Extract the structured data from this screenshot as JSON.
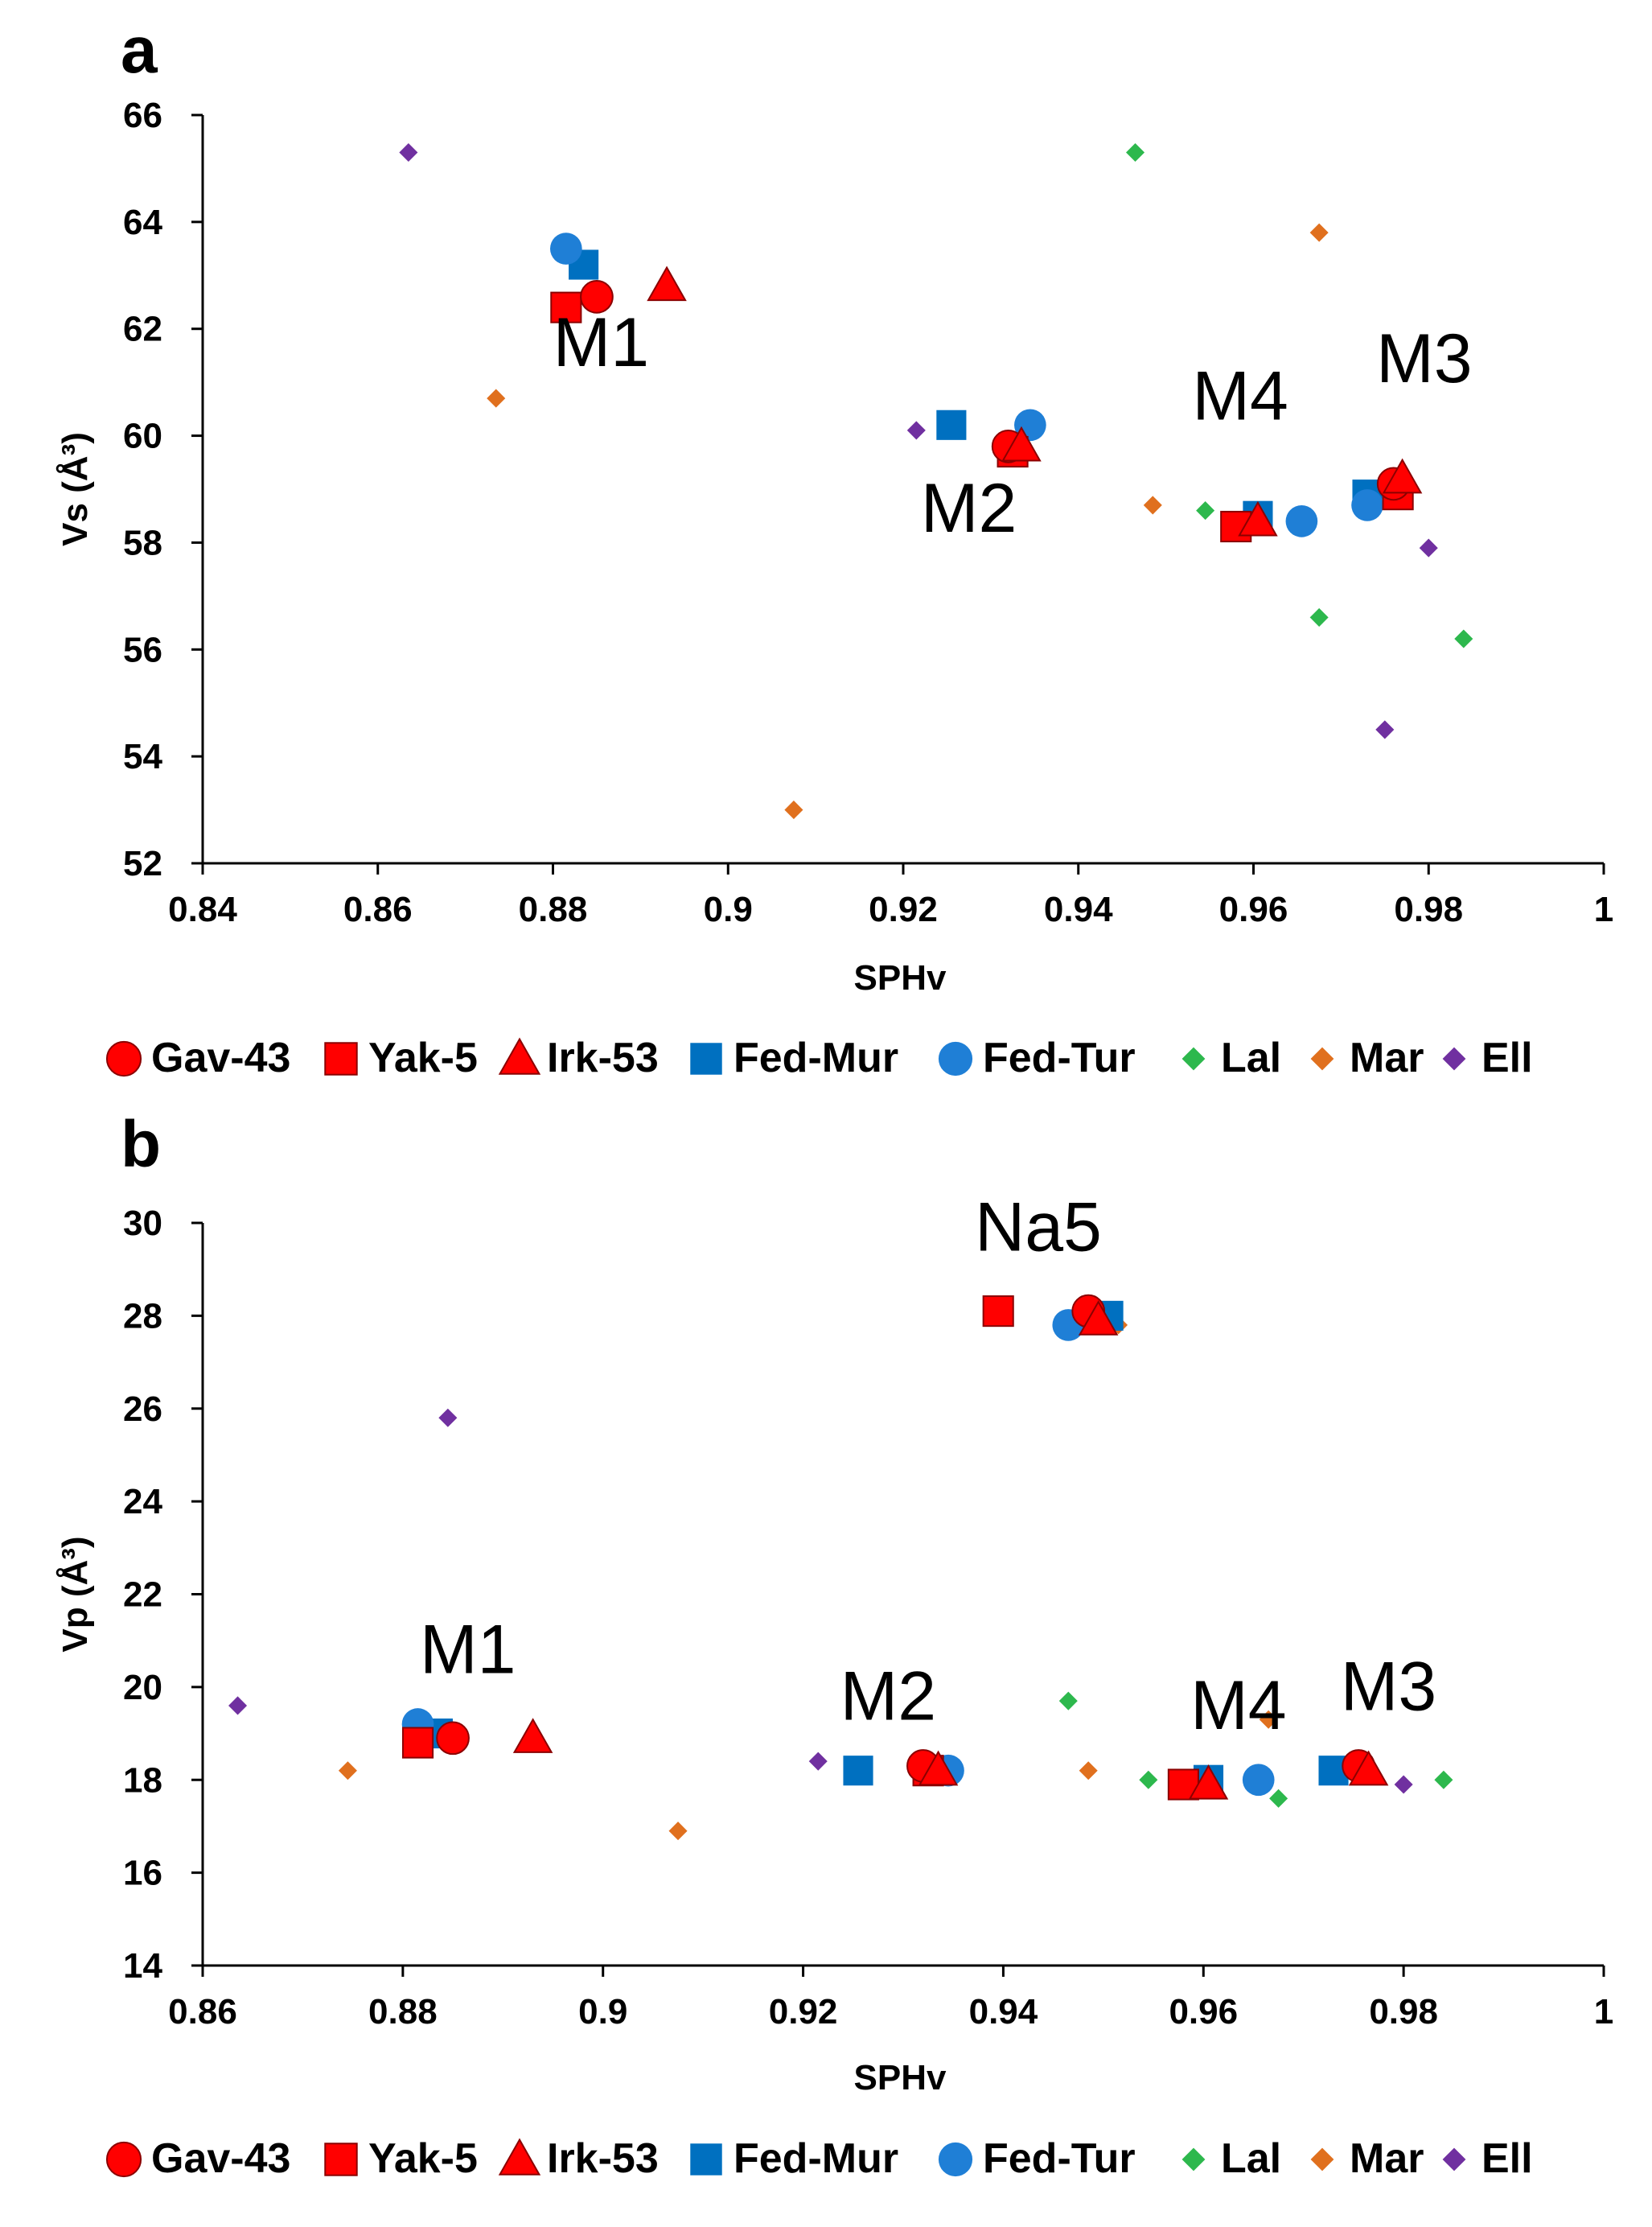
{
  "colors": {
    "Gav-43": "#ff0000",
    "Yak-5": "#ff0000",
    "Irk-53": "#ff0000",
    "Fed-Mur": "#0070c0",
    "Fed-Tur": "#1f7fd6",
    "Lal": "#2db84d",
    "Mar": "#e0701e",
    "Ell": "#7030a0"
  },
  "chart_data": [
    {
      "panel_label": "a",
      "type": "scatter",
      "title": "",
      "xlabel": "SPHv",
      "ylabel": "Vs (Å³)",
      "xlim": [
        0.84,
        1.0
      ],
      "ylim": [
        52,
        66
      ],
      "xticks": [
        "0.84",
        "0.86",
        "0.88",
        "0.9",
        "0.92",
        "0.94",
        "0.96",
        "0.98",
        "1"
      ],
      "yticks": [
        "52",
        "54",
        "56",
        "58",
        "60",
        "62",
        "64",
        "66"
      ],
      "grid": false,
      "legend_position": "bottom",
      "series": [
        {
          "name": "Gav-43",
          "marker": "circle",
          "points": [
            [
              0.885,
              62.6
            ],
            [
              0.932,
              59.8
            ],
            [
              0.976,
              59.1
            ]
          ]
        },
        {
          "name": "Yak-5",
          "marker": "square",
          "points": [
            [
              0.8815,
              62.4
            ],
            [
              0.9325,
              59.7
            ],
            [
              0.958,
              58.3
            ],
            [
              0.9765,
              58.9
            ]
          ]
        },
        {
          "name": "Irk-53",
          "marker": "triangle",
          "points": [
            [
              0.893,
              62.8
            ],
            [
              0.9335,
              59.8
            ],
            [
              0.9605,
              58.4
            ],
            [
              0.977,
              59.2
            ]
          ]
        },
        {
          "name": "Fed-Mur",
          "marker": "square",
          "points": [
            [
              0.8835,
              63.2
            ],
            [
              0.9255,
              60.2
            ],
            [
              0.9605,
              58.5
            ],
            [
              0.973,
              58.9
            ]
          ]
        },
        {
          "name": "Fed-Tur",
          "marker": "circle",
          "points": [
            [
              0.8815,
              63.5
            ],
            [
              0.9345,
              60.2
            ],
            [
              0.9655,
              58.4
            ],
            [
              0.973,
              58.7
            ]
          ]
        },
        {
          "name": "Lal",
          "marker": "diamond",
          "points": [
            [
              0.9465,
              65.3
            ],
            [
              0.9545,
              58.6
            ],
            [
              0.9675,
              56.6
            ],
            [
              0.984,
              56.2
            ]
          ]
        },
        {
          "name": "Mar",
          "marker": "diamond",
          "points": [
            [
              0.8735,
              60.7
            ],
            [
              0.9075,
              53.0
            ],
            [
              0.9485,
              58.7
            ],
            [
              0.9675,
              63.8
            ]
          ]
        },
        {
          "name": "Ell",
          "marker": "diamond",
          "points": [
            [
              0.8635,
              65.3
            ],
            [
              0.9215,
              60.1
            ],
            [
              0.975,
              54.5
            ],
            [
              0.98,
              57.9
            ]
          ]
        }
      ],
      "annotations": [
        {
          "text": "M1",
          "x": 0.8855,
          "y": 61.3
        },
        {
          "text": "M2",
          "x": 0.9275,
          "y": 58.2
        },
        {
          "text": "M4",
          "x": 0.9585,
          "y": 60.3
        },
        {
          "text": "M3",
          "x": 0.9795,
          "y": 61.0
        }
      ]
    },
    {
      "panel_label": "b",
      "type": "scatter",
      "title": "",
      "xlabel": "SPHv",
      "ylabel": "Vp (Å³)",
      "xlim": [
        0.86,
        1.0
      ],
      "ylim": [
        14,
        30
      ],
      "xticks": [
        "0.86",
        "0.88",
        "0.9",
        "0.92",
        "0.94",
        "0.96",
        "0.98",
        "1"
      ],
      "yticks": [
        "14",
        "16",
        "18",
        "20",
        "22",
        "24",
        "26",
        "28",
        "30"
      ],
      "grid": false,
      "legend_position": "bottom",
      "series": [
        {
          "name": "Gav-43",
          "marker": "circle",
          "points": [
            [
              0.885,
              18.9
            ],
            [
              0.932,
              18.3
            ],
            [
              0.9485,
              28.1
            ],
            [
              0.9755,
              18.3
            ]
          ]
        },
        {
          "name": "Yak-5",
          "marker": "square",
          "points": [
            [
              0.8815,
              18.8
            ],
            [
              0.9325,
              18.2
            ],
            [
              0.9395,
              28.1
            ],
            [
              0.958,
              17.9
            ]
          ]
        },
        {
          "name": "Irk-53",
          "marker": "triangle",
          "points": [
            [
              0.893,
              18.9
            ],
            [
              0.9335,
              18.2
            ],
            [
              0.9495,
              27.9
            ],
            [
              0.9605,
              17.9
            ],
            [
              0.9765,
              18.2
            ]
          ]
        },
        {
          "name": "Fed-Mur",
          "marker": "square",
          "points": [
            [
              0.8835,
              19.0
            ],
            [
              0.9255,
              18.2
            ],
            [
              0.9505,
              28.0
            ],
            [
              0.9605,
              18.0
            ],
            [
              0.973,
              18.2
            ]
          ]
        },
        {
          "name": "Fed-Tur",
          "marker": "circle",
          "points": [
            [
              0.8815,
              19.2
            ],
            [
              0.9345,
              18.2
            ],
            [
              0.9465,
              27.8
            ],
            [
              0.9655,
              18.0
            ]
          ]
        },
        {
          "name": "Lal",
          "marker": "diamond",
          "points": [
            [
              0.9465,
              19.7
            ],
            [
              0.9545,
              18.0
            ],
            [
              0.9675,
              17.6
            ],
            [
              0.984,
              18.0
            ]
          ]
        },
        {
          "name": "Mar",
          "marker": "diamond",
          "points": [
            [
              0.8745,
              18.2
            ],
            [
              0.9075,
              16.9
            ],
            [
              0.9485,
              18.2
            ],
            [
              0.9515,
              27.8
            ],
            [
              0.9665,
              19.3
            ]
          ]
        },
        {
          "name": "Ell",
          "marker": "diamond",
          "points": [
            [
              0.8635,
              19.6
            ],
            [
              0.8845,
              25.8
            ],
            [
              0.9215,
              18.4
            ],
            [
              0.975,
              18.4
            ],
            [
              0.98,
              17.9
            ]
          ]
        }
      ],
      "annotations": [
        {
          "text": "Na5",
          "x": 0.9435,
          "y": 29.4
        },
        {
          "text": "M1",
          "x": 0.8865,
          "y": 20.3
        },
        {
          "text": "M2",
          "x": 0.9285,
          "y": 19.3
        },
        {
          "text": "M4",
          "x": 0.9635,
          "y": 19.1
        },
        {
          "text": "M3",
          "x": 0.9785,
          "y": 19.5
        }
      ]
    }
  ]
}
